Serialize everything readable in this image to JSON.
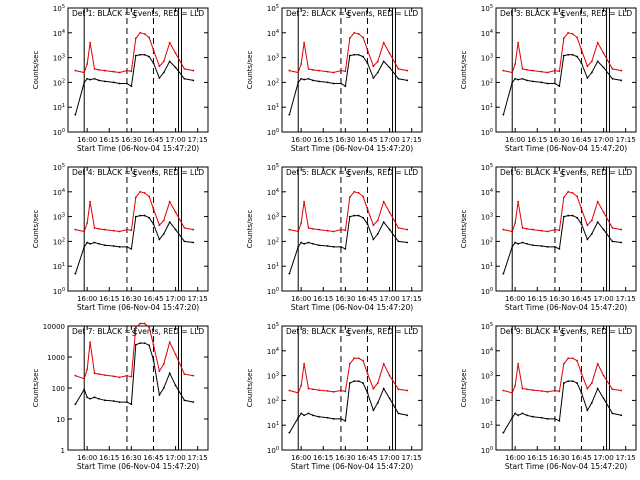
{
  "figure": {
    "x_tick_labels": [
      "16:00",
      "16:15",
      "16:30",
      "16:45",
      "17:00",
      "17:15"
    ],
    "colors": {
      "events": "#000000",
      "lld": "#e00000",
      "axes": "#000000"
    }
  },
  "chart_data": [
    {
      "type": "line",
      "title": "Det 1: BLACK = Events, RED = LLD",
      "xlabel": "Start Time (06-Nov-04 15:47:20)",
      "ylabel": "Counts/sec",
      "y_scale": "log",
      "ylim": [
        1,
        100000
      ],
      "y_tick_labels": [
        "10^0",
        "10^1",
        "10^2",
        "10^3",
        "10^4",
        "10^5"
      ],
      "x": [
        "15:52",
        "15:58",
        "16:00",
        "16:02",
        "16:05",
        "16:08",
        "16:12",
        "16:18",
        "16:22",
        "16:27",
        "16:30",
        "16:33",
        "16:36",
        "16:39",
        "16:42",
        "16:45",
        "16:49",
        "16:52",
        "16:56",
        "17:00",
        "17:06",
        "17:12"
      ],
      "series": [
        {
          "name": "Events",
          "values": [
            5,
            100,
            140,
            130,
            140,
            120,
            110,
            100,
            90,
            90,
            70,
            1200,
            1300,
            1300,
            1100,
            600,
            150,
            250,
            700,
            400,
            140,
            120
          ]
        },
        {
          "name": "LLD",
          "values": [
            300,
            250,
            550,
            4000,
            350,
            320,
            300,
            270,
            250,
            300,
            280,
            6000,
            10000,
            9000,
            6500,
            2000,
            450,
            700,
            4000,
            1500,
            350,
            300
          ]
        }
      ]
    },
    {
      "type": "line",
      "title": "Det 2: BLACK = Events, RED = LLD",
      "xlabel": "Start Time (06-Nov-04 15:47:20)",
      "ylabel": "Counts/sec",
      "y_scale": "log",
      "ylim": [
        1,
        100000
      ],
      "y_tick_labels": [
        "10^0",
        "10^1",
        "10^2",
        "10^3",
        "10^4",
        "10^5"
      ],
      "x": [
        "15:52",
        "15:58",
        "16:00",
        "16:02",
        "16:05",
        "16:08",
        "16:12",
        "16:18",
        "16:22",
        "16:27",
        "16:30",
        "16:33",
        "16:36",
        "16:39",
        "16:42",
        "16:45",
        "16:49",
        "16:52",
        "16:56",
        "17:00",
        "17:06",
        "17:12"
      ],
      "series": [
        {
          "name": "Events",
          "values": [
            5,
            100,
            140,
            130,
            140,
            120,
            110,
            100,
            90,
            90,
            70,
            1200,
            1300,
            1300,
            1100,
            600,
            150,
            250,
            700,
            400,
            140,
            120
          ]
        },
        {
          "name": "LLD",
          "values": [
            300,
            250,
            550,
            4000,
            350,
            320,
            300,
            270,
            250,
            300,
            280,
            6000,
            10000,
            9000,
            6500,
            2000,
            450,
            700,
            4000,
            1500,
            350,
            300
          ]
        }
      ]
    },
    {
      "type": "line",
      "title": "Det 3: BLACK = Events, RED = LLD",
      "xlabel": "Start Time (06-Nov-04 15:47:20)",
      "ylabel": "Counts/sec",
      "y_scale": "log",
      "ylim": [
        1,
        100000
      ],
      "y_tick_labels": [
        "10^0",
        "10^1",
        "10^2",
        "10^3",
        "10^4",
        "10^5"
      ],
      "x": [
        "15:52",
        "15:58",
        "16:00",
        "16:02",
        "16:05",
        "16:08",
        "16:12",
        "16:18",
        "16:22",
        "16:27",
        "16:30",
        "16:33",
        "16:36",
        "16:39",
        "16:42",
        "16:45",
        "16:49",
        "16:52",
        "16:56",
        "17:00",
        "17:06",
        "17:12"
      ],
      "series": [
        {
          "name": "Events",
          "values": [
            5,
            100,
            140,
            130,
            140,
            120,
            110,
            100,
            90,
            90,
            70,
            1200,
            1300,
            1300,
            1100,
            600,
            150,
            250,
            700,
            400,
            140,
            120
          ]
        },
        {
          "name": "LLD",
          "values": [
            300,
            250,
            550,
            4000,
            350,
            320,
            300,
            270,
            250,
            300,
            280,
            6000,
            10000,
            9000,
            6500,
            2000,
            450,
            700,
            4000,
            1500,
            350,
            300
          ]
        }
      ]
    },
    {
      "type": "line",
      "title": "Det 4: BLACK = Events, RED = LLD",
      "xlabel": "Start Time (06-Nov-04 15:47:20)",
      "ylabel": "Counts/sec",
      "y_scale": "log",
      "ylim": [
        1,
        100000
      ],
      "y_tick_labels": [
        "10^0",
        "10^1",
        "10^2",
        "10^3",
        "10^4",
        "10^5"
      ],
      "x": [
        "15:52",
        "15:58",
        "16:00",
        "16:02",
        "16:05",
        "16:08",
        "16:12",
        "16:18",
        "16:22",
        "16:27",
        "16:30",
        "16:33",
        "16:36",
        "16:39",
        "16:42",
        "16:45",
        "16:49",
        "16:52",
        "16:56",
        "17:00",
        "17:06",
        "17:12"
      ],
      "series": [
        {
          "name": "Events",
          "values": [
            5,
            60,
            90,
            80,
            90,
            80,
            70,
            65,
            60,
            60,
            50,
            1000,
            1100,
            1100,
            900,
            500,
            120,
            200,
            600,
            300,
            100,
            90
          ]
        },
        {
          "name": "LLD",
          "values": [
            300,
            250,
            550,
            4000,
            350,
            320,
            300,
            270,
            250,
            300,
            280,
            6000,
            10000,
            9000,
            6500,
            2000,
            450,
            700,
            4000,
            1500,
            350,
            300
          ]
        }
      ]
    },
    {
      "type": "line",
      "title": "Det 5: BLACK = Events, RED = LLD",
      "xlabel": "Start Time (06-Nov-04 15:47:20)",
      "ylabel": "Counts/sec",
      "y_scale": "log",
      "ylim": [
        1,
        100000
      ],
      "y_tick_labels": [
        "10^0",
        "10^1",
        "10^2",
        "10^3",
        "10^4",
        "10^5"
      ],
      "x": [
        "15:52",
        "15:58",
        "16:00",
        "16:02",
        "16:05",
        "16:08",
        "16:12",
        "16:18",
        "16:22",
        "16:27",
        "16:30",
        "16:33",
        "16:36",
        "16:39",
        "16:42",
        "16:45",
        "16:49",
        "16:52",
        "16:56",
        "17:00",
        "17:06",
        "17:12"
      ],
      "series": [
        {
          "name": "Events",
          "values": [
            5,
            60,
            90,
            80,
            90,
            80,
            70,
            65,
            60,
            60,
            50,
            1000,
            1100,
            1100,
            900,
            500,
            120,
            200,
            600,
            300,
            100,
            90
          ]
        },
        {
          "name": "LLD",
          "values": [
            300,
            250,
            550,
            4000,
            350,
            320,
            300,
            270,
            250,
            300,
            280,
            6000,
            10000,
            9000,
            6500,
            2000,
            450,
            700,
            4000,
            1500,
            350,
            300
          ]
        }
      ]
    },
    {
      "type": "line",
      "title": "Det 6: BLACK = Events, RED = LLD",
      "xlabel": "Start Time (06-Nov-04 15:47:20)",
      "ylabel": "Counts/sec",
      "y_scale": "log",
      "ylim": [
        1,
        100000
      ],
      "y_tick_labels": [
        "10^0",
        "10^1",
        "10^2",
        "10^3",
        "10^4",
        "10^5"
      ],
      "x": [
        "15:52",
        "15:58",
        "16:00",
        "16:02",
        "16:05",
        "16:08",
        "16:12",
        "16:18",
        "16:22",
        "16:27",
        "16:30",
        "16:33",
        "16:36",
        "16:39",
        "16:42",
        "16:45",
        "16:49",
        "16:52",
        "16:56",
        "17:00",
        "17:06",
        "17:12"
      ],
      "series": [
        {
          "name": "Events",
          "values": [
            5,
            60,
            90,
            80,
            90,
            80,
            70,
            65,
            60,
            60,
            50,
            1000,
            1100,
            1100,
            900,
            500,
            120,
            200,
            600,
            300,
            100,
            90
          ]
        },
        {
          "name": "LLD",
          "values": [
            300,
            250,
            550,
            4000,
            350,
            320,
            300,
            270,
            250,
            300,
            280,
            6000,
            10000,
            9000,
            6500,
            2000,
            450,
            700,
            4000,
            1500,
            350,
            300
          ]
        }
      ]
    },
    {
      "type": "line",
      "title": "Det 7: BLACK = Events, RED = LLD",
      "xlabel": "Start Time (06-Nov-04 15:47:20)",
      "ylabel": "Counts/sec",
      "y_scale": "log",
      "ylim": [
        1,
        10000
      ],
      "y_tick_labels": [
        "1",
        "10",
        "100",
        "1000",
        "10000"
      ],
      "x": [
        "15:52",
        "15:58",
        "16:00",
        "16:02",
        "16:05",
        "16:08",
        "16:12",
        "16:18",
        "16:22",
        "16:27",
        "16:30",
        "16:33",
        "16:36",
        "16:39",
        "16:42",
        "16:45",
        "16:49",
        "16:52",
        "16:56",
        "17:00",
        "17:06",
        "17:12"
      ],
      "series": [
        {
          "name": "Events",
          "values": [
            30,
            90,
            50,
            45,
            50,
            45,
            40,
            38,
            35,
            35,
            30,
            2500,
            2800,
            2800,
            2400,
            800,
            60,
            100,
            300,
            120,
            40,
            35
          ]
        },
        {
          "name": "LLD",
          "values": [
            250,
            200,
            400,
            3000,
            300,
            280,
            260,
            240,
            220,
            250,
            230,
            9000,
            12000,
            12000,
            9000,
            2500,
            350,
            600,
            3000,
            1200,
            280,
            250
          ]
        }
      ]
    },
    {
      "type": "line",
      "title": "Det 8: BLACK = Events, RED = LLD",
      "xlabel": "Start Time (06-Nov-04 15:47:20)",
      "ylabel": "Counts/sec",
      "y_scale": "log",
      "ylim": [
        1,
        100000
      ],
      "y_tick_labels": [
        "10^0",
        "10^1",
        "10^2",
        "10^3",
        "10^4",
        "10^5"
      ],
      "x": [
        "15:52",
        "15:58",
        "16:00",
        "16:02",
        "16:05",
        "16:08",
        "16:12",
        "16:18",
        "16:22",
        "16:27",
        "16:30",
        "16:33",
        "16:36",
        "16:39",
        "16:42",
        "16:45",
        "16:49",
        "16:52",
        "16:56",
        "17:00",
        "17:06",
        "17:12"
      ],
      "series": [
        {
          "name": "Events",
          "values": [
            5,
            20,
            30,
            25,
            30,
            25,
            22,
            20,
            18,
            18,
            15,
            500,
            600,
            600,
            500,
            200,
            40,
            80,
            300,
            120,
            30,
            25
          ]
        },
        {
          "name": "LLD",
          "values": [
            250,
            200,
            400,
            3000,
            300,
            280,
            260,
            240,
            220,
            250,
            230,
            3000,
            5000,
            5000,
            4000,
            1200,
            300,
            500,
            3000,
            1000,
            280,
            250
          ]
        }
      ]
    },
    {
      "type": "line",
      "title": "Det 9: BLACK = Events, RED = LLD",
      "xlabel": "Start Time (06-Nov-04 15:47:20)",
      "ylabel": "Counts/sec",
      "y_scale": "log",
      "ylim": [
        1,
        100000
      ],
      "y_tick_labels": [
        "10^0",
        "10^1",
        "10^2",
        "10^3",
        "10^4",
        "10^5"
      ],
      "x": [
        "15:52",
        "15:58",
        "16:00",
        "16:02",
        "16:05",
        "16:08",
        "16:12",
        "16:18",
        "16:22",
        "16:27",
        "16:30",
        "16:33",
        "16:36",
        "16:39",
        "16:42",
        "16:45",
        "16:49",
        "16:52",
        "16:56",
        "17:00",
        "17:06",
        "17:12"
      ],
      "series": [
        {
          "name": "Events",
          "values": [
            5,
            20,
            30,
            25,
            30,
            25,
            22,
            20,
            18,
            18,
            15,
            500,
            600,
            600,
            500,
            200,
            40,
            80,
            300,
            120,
            30,
            25
          ]
        },
        {
          "name": "LLD",
          "values": [
            250,
            200,
            400,
            3000,
            300,
            280,
            260,
            240,
            220,
            250,
            230,
            3000,
            5000,
            5000,
            4000,
            1200,
            300,
            500,
            3000,
            1000,
            280,
            250
          ]
        }
      ]
    }
  ]
}
